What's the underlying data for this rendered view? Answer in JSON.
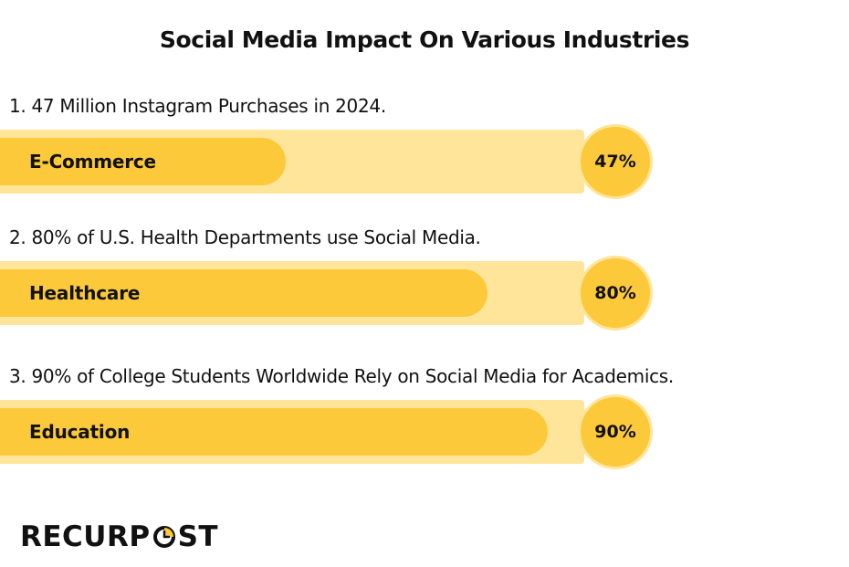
{
  "title": "Social Media Impact On Various Industries",
  "chart_data": {
    "type": "bar",
    "orientation": "horizontal",
    "categories": [
      "E-Commerce",
      "Healthcare",
      "Education"
    ],
    "values": [
      47,
      80,
      90
    ],
    "value_labels": [
      "47%",
      "80%",
      "90%"
    ],
    "unit": "%",
    "xlim": [
      0,
      100
    ],
    "annotations": [
      {
        "number": "1.",
        "text": "47 Million Instagram Purchases in 2024."
      },
      {
        "number": "2.",
        "text": "80% of U.S. Health Departments use Social Media."
      },
      {
        "number": "3.",
        "text": "90% of College Students Worldwide Rely on Social Media for Academics."
      }
    ]
  },
  "colors": {
    "track": "#ffe59a",
    "fill": "#fcc93a",
    "text": "#111111"
  },
  "logo": {
    "text_before": "RECURP",
    "text_after": "ST",
    "icon": "clock-o-icon"
  }
}
